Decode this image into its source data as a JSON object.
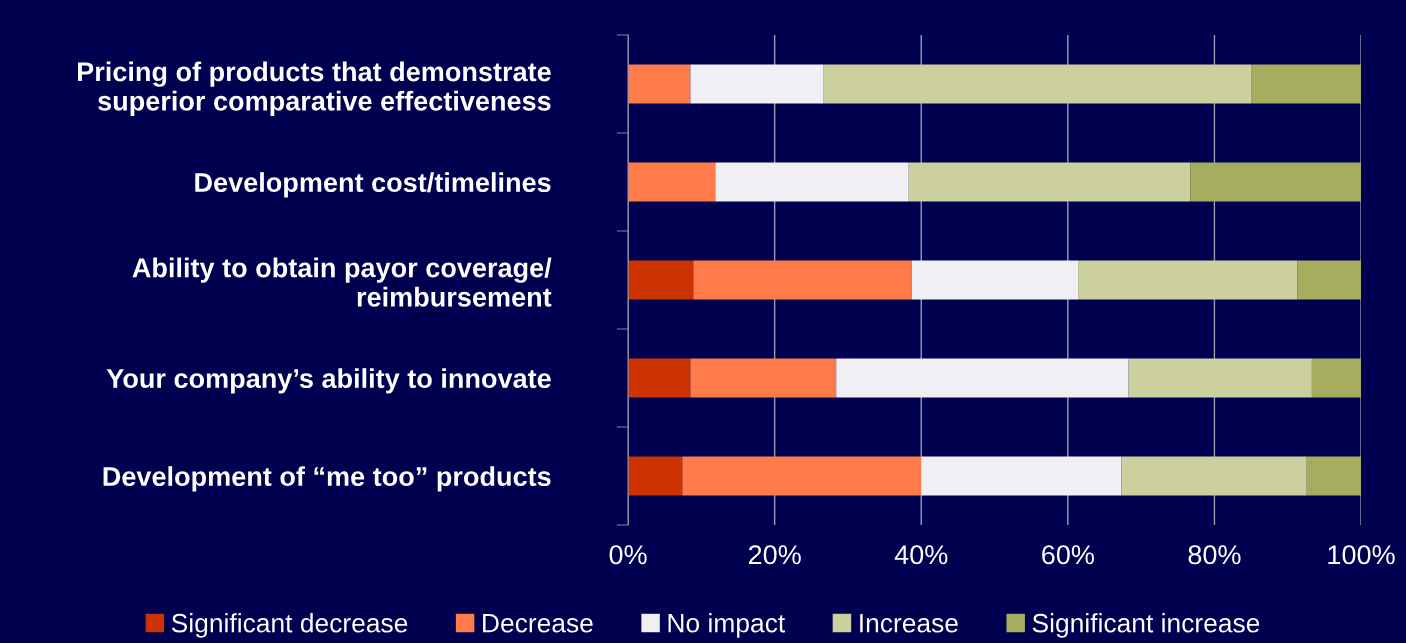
{
  "chart_data": {
    "type": "bar",
    "orientation": "horizontal",
    "stacked": true,
    "categories": [
      "Pricing of products that demonstrate\nsuperior comparative effectiveness",
      "Development cost/timelines",
      "Ability to obtain payor coverage/\nreimbursement",
      "Your company’s ability to innovate",
      "Development of “me too” products"
    ],
    "series": [
      {
        "name": "Significant decrease",
        "color": "#cc3300",
        "values": [
          0,
          0,
          8.9,
          8.5,
          7.4
        ]
      },
      {
        "name": "Decrease",
        "color": "#ff7b4a",
        "values": [
          8.5,
          11.9,
          29.8,
          19.9,
          32.6
        ]
      },
      {
        "name": "No impact",
        "color": "#f0f0f4",
        "values": [
          18.2,
          26.4,
          22.7,
          39.9,
          27.3
        ]
      },
      {
        "name": "Increase",
        "color": "#cbd09e",
        "values": [
          58.3,
          38.4,
          29.9,
          25.0,
          25.3
        ]
      },
      {
        "name": "Significant increase",
        "color": "#a6ad5e",
        "values": [
          15.0,
          23.3,
          8.7,
          6.7,
          7.4
        ]
      }
    ],
    "xlim": [
      0,
      100
    ],
    "xticks": [
      {
        "value": 0,
        "label": "0%"
      },
      {
        "value": 20,
        "label": "20%"
      },
      {
        "value": 40,
        "label": "40%"
      },
      {
        "value": 60,
        "label": "60%"
      },
      {
        "value": 80,
        "label": "80%"
      },
      {
        "value": 100,
        "label": "100%"
      }
    ],
    "grid": "x",
    "legend": "bottom"
  }
}
